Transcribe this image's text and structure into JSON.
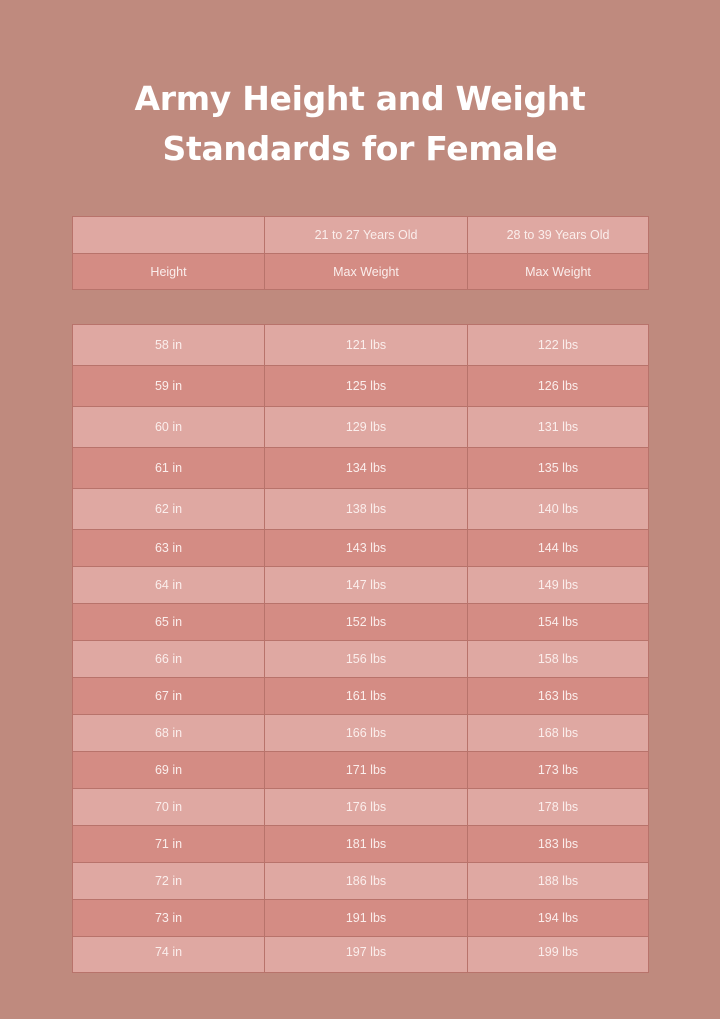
{
  "title_line1": "Army Height and Weight",
  "title_line2": "Standards for Female",
  "header": {
    "row1": [
      "",
      "21 to 27 Years Old",
      "28 to 39 Years Old"
    ],
    "row2": [
      "Height",
      "Max Weight",
      "Max Weight"
    ]
  },
  "rows": [
    [
      "58 in",
      "121 lbs",
      "122 lbs"
    ],
    [
      "59 in",
      "125 lbs",
      "126 lbs"
    ],
    [
      "60 in",
      "129 lbs",
      "131 lbs"
    ],
    [
      "61 in",
      "134 lbs",
      "135 lbs"
    ],
    [
      "62 in",
      "138 lbs",
      "140 lbs"
    ],
    [
      "63 in",
      "143 lbs",
      "144 lbs"
    ],
    [
      "64 in",
      "147 lbs",
      "149 lbs"
    ],
    [
      "65 in",
      "152 lbs",
      "154 lbs"
    ],
    [
      "66 in",
      "156 lbs",
      "158 lbs"
    ],
    [
      "67 in",
      "161 lbs",
      "163 lbs"
    ],
    [
      "68 in",
      "166 lbs",
      "168 lbs"
    ],
    [
      "69 in",
      "171 lbs",
      "173 lbs"
    ],
    [
      "70 in",
      "176 lbs",
      "178 lbs"
    ],
    [
      "71 in",
      "181 lbs",
      "183 lbs"
    ],
    [
      "72 in",
      "186 lbs",
      "188 lbs"
    ],
    [
      "73 in",
      "191 lbs",
      "194 lbs"
    ],
    [
      "74 in",
      "197 lbs",
      "199 lbs"
    ]
  ],
  "colors": {
    "background": "#bf8a7e",
    "row_light": "#dfa8a2",
    "row_dark": "#d48c84",
    "text": "#ffffff"
  }
}
